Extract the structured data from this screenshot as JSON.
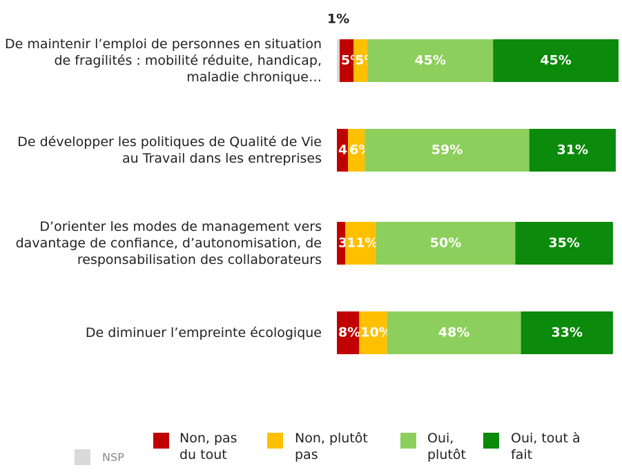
{
  "chart_data": {
    "type": "stacked-bar-horizontal",
    "categories": [
      "De maintenir l’emploi de personnes en situation de fragilités : mobilité réduite, handicap, maladie chronique…",
      "De développer les politiques de Qualité de Vie au Travail dans les entreprises",
      "D’orienter les modes de management vers davantage de  confiance, d’autonomisation, de responsabilisation des collaborateurs",
      "De diminuer l’empreinte écologique"
    ],
    "series": [
      {
        "name": "NSP",
        "color": "#d9d9d9",
        "values": [
          1,
          null,
          null,
          null
        ],
        "value_labels": [
          "1%",
          null,
          null,
          null
        ]
      },
      {
        "name": "Non, pas du tout",
        "color": "#c00000",
        "values": [
          5,
          4,
          3,
          8
        ],
        "value_labels": [
          "5%",
          "4%",
          "3%",
          "8%"
        ]
      },
      {
        "name": "Non, plutôt pas",
        "color": "#ffc000",
        "values": [
          5,
          6,
          11,
          10
        ],
        "value_labels": [
          "5%",
          "6%",
          "11%",
          "10%"
        ]
      },
      {
        "name": "Oui, plutôt",
        "color": "#8ccf5c",
        "values": [
          45,
          59,
          50,
          48
        ],
        "value_labels": [
          "45%",
          "59%",
          "50%",
          "48%"
        ]
      },
      {
        "name": "Oui, tout à fait",
        "color": "#0b8a0b",
        "values": [
          45,
          31,
          35,
          33
        ],
        "value_labels": [
          "45%",
          "31%",
          "35%",
          "33%"
        ]
      }
    ]
  }
}
